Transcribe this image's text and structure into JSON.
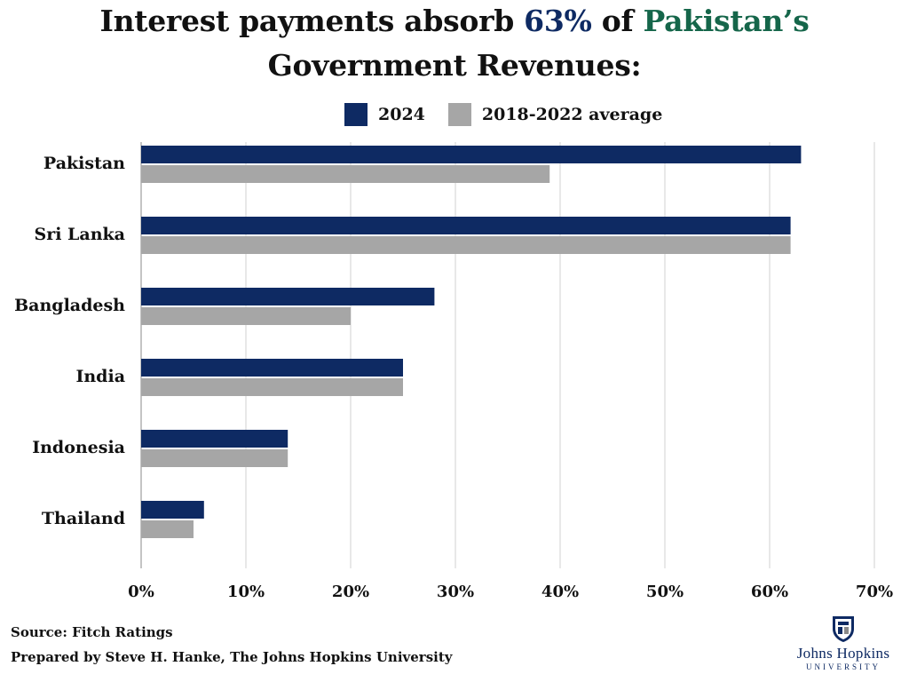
{
  "title": {
    "line1_pre": "Interest payments absorb ",
    "line1_highlight_blue": "63%",
    "line1_mid": " of ",
    "line1_highlight_green": "Pakistan’s",
    "line2": "Government Revenues:"
  },
  "colors": {
    "series_2024": "#0e2a63",
    "series_avg": "#a6a6a6",
    "title_blue": "#0e2a63",
    "title_green": "#15664a",
    "grid": "#d0d0d0"
  },
  "chart_data": {
    "type": "bar",
    "orientation": "horizontal",
    "title": "Interest payments absorb 63% of Pakistan’s Government Revenues:",
    "categories": [
      "Pakistan",
      "Sri Lanka",
      "Bangladesh",
      "India",
      "Indonesia",
      "Thailand"
    ],
    "series": [
      {
        "name": "2024",
        "values": [
          63,
          62,
          28,
          25,
          14,
          6
        ]
      },
      {
        "name": "2018-2022 average",
        "values": [
          39,
          62,
          20,
          25,
          14,
          5
        ]
      }
    ],
    "xlim": [
      0,
      70
    ],
    "xticks": [
      0,
      10,
      20,
      30,
      40,
      50,
      60,
      70
    ],
    "tick_suffix": "%",
    "xlabel": "",
    "ylabel": "",
    "grid": true,
    "legend_position": "top-center"
  },
  "footer": {
    "source": "Source: Fitch Ratings",
    "prepared_by": "Prepared by Steve H. Hanke, The Johns Hopkins University"
  },
  "logo": {
    "name": "Johns Hopkins",
    "subtitle": "UNIVERSITY",
    "icon": "shield-icon"
  }
}
